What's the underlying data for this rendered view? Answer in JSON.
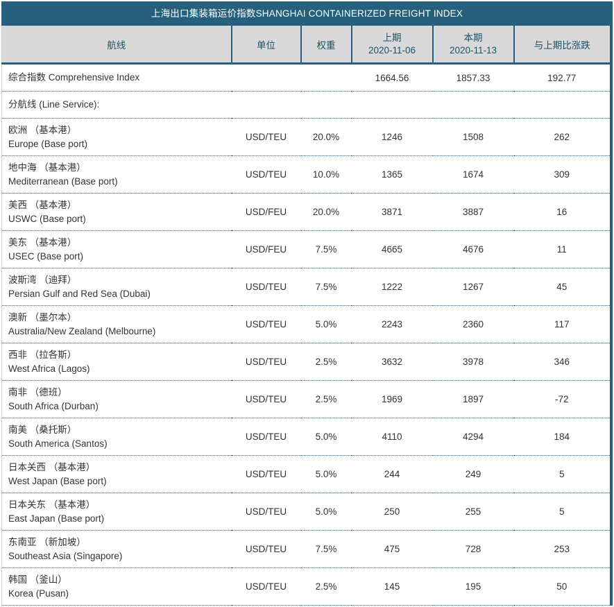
{
  "title": "上海出口集装箱运价指数SHANGHAI CONTAINERIZED FREIGHT INDEX",
  "colors": {
    "accent": "#26607D",
    "header_bg": "#D9D9D9",
    "header_text": "#1D5068",
    "body_text": "#333333",
    "dotted_border": "#2D5970"
  },
  "table": {
    "headers": {
      "route": "航线",
      "unit": "单位",
      "weight": "权重",
      "prev_label": "上期",
      "prev_date": "2020-11-06",
      "curr_label": "本期",
      "curr_date": "2020-11-13",
      "change": "与上期比涨跌"
    },
    "rows": [
      {
        "cn": "综合指数 Comprehensive Index",
        "en": "",
        "unit": "",
        "weight": "",
        "prev": "1664.56",
        "curr": "1857.33",
        "change": "192.77"
      },
      {
        "cn": "分航线 (Line Service):",
        "en": "",
        "unit": "",
        "weight": "",
        "prev": "",
        "curr": "",
        "change": ""
      },
      {
        "cn": "欧洲 （基本港）",
        "en": "Europe (Base port)",
        "unit": "USD/TEU",
        "weight": "20.0%",
        "prev": "1246",
        "curr": "1508",
        "change": "262"
      },
      {
        "cn": "地中海 （基本港）",
        "en": "Mediterranean (Base port)",
        "unit": "USD/TEU",
        "weight": "10.0%",
        "prev": "1365",
        "curr": "1674",
        "change": "309"
      },
      {
        "cn": "美西 （基本港）",
        "en": "USWC (Base port)",
        "unit": "USD/FEU",
        "weight": "20.0%",
        "prev": "3871",
        "curr": "3887",
        "change": "16"
      },
      {
        "cn": "美东 （基本港）",
        "en": "USEC (Base port)",
        "unit": "USD/FEU",
        "weight": "7.5%",
        "prev": "4665",
        "curr": "4676",
        "change": "11"
      },
      {
        "cn": "波斯湾 （迪拜）",
        "en": "Persian Gulf and Red Sea (Dubai)",
        "unit": "USD/TEU",
        "weight": "7.5%",
        "prev": "1222",
        "curr": "1267",
        "change": "45"
      },
      {
        "cn": "澳新 （墨尔本）",
        "en": "Australia/New Zealand (Melbourne)",
        "unit": "USD/TEU",
        "weight": "5.0%",
        "prev": "2243",
        "curr": "2360",
        "change": "117"
      },
      {
        "cn": "西非 （拉各斯）",
        "en": "West Africa (Lagos)",
        "unit": "USD/TEU",
        "weight": "2.5%",
        "prev": "3632",
        "curr": "3978",
        "change": "346"
      },
      {
        "cn": "南非 （德班）",
        "en": "South Africa (Durban)",
        "unit": "USD/TEU",
        "weight": "2.5%",
        "prev": "1969",
        "curr": "1897",
        "change": "-72"
      },
      {
        "cn": "南美 （桑托斯）",
        "en": "South America (Santos)",
        "unit": "USD/TEU",
        "weight": "5.0%",
        "prev": "4110",
        "curr": "4294",
        "change": "184"
      },
      {
        "cn": "日本关西 （基本港）",
        "en": "West Japan (Base port)",
        "unit": "USD/TEU",
        "weight": "5.0%",
        "prev": "244",
        "curr": "249",
        "change": "5"
      },
      {
        "cn": "日本关东 （基本港）",
        "en": "East Japan (Base port)",
        "unit": "USD/TEU",
        "weight": "5.0%",
        "prev": "250",
        "curr": "255",
        "change": "5"
      },
      {
        "cn": "东南亚 （新加坡）",
        "en": "Southeast Asia (Singapore)",
        "unit": "USD/TEU",
        "weight": "7.5%",
        "prev": "475",
        "curr": "728",
        "change": "253"
      },
      {
        "cn": "韩国 （釜山）",
        "en": "Korea (Pusan)",
        "unit": "USD/TEU",
        "weight": "2.5%",
        "prev": "145",
        "curr": "195",
        "change": "50"
      }
    ]
  },
  "chart_data": {
    "type": "table",
    "title": "上海出口集装箱运价指数SHANGHAI CONTAINERIZED FREIGHT INDEX",
    "columns": [
      "航线",
      "单位",
      "权重",
      "上期 2020-11-06",
      "本期 2020-11-13",
      "与上期比涨跌"
    ],
    "rows": [
      [
        "综合指数 Comprehensive Index",
        "",
        "",
        1664.56,
        1857.33,
        192.77
      ],
      [
        "分航线 (Line Service):",
        "",
        "",
        null,
        null,
        null
      ],
      [
        "欧洲 （基本港） Europe (Base port)",
        "USD/TEU",
        "20.0%",
        1246,
        1508,
        262
      ],
      [
        "地中海 （基本港） Mediterranean (Base port)",
        "USD/TEU",
        "10.0%",
        1365,
        1674,
        309
      ],
      [
        "美西 （基本港） USWC (Base port)",
        "USD/FEU",
        "20.0%",
        3871,
        3887,
        16
      ],
      [
        "美东 （基本港） USEC (Base port)",
        "USD/FEU",
        "7.5%",
        4665,
        4676,
        11
      ],
      [
        "波斯湾 （迪拜） Persian Gulf and Red Sea (Dubai)",
        "USD/TEU",
        "7.5%",
        1222,
        1267,
        45
      ],
      [
        "澳新 （墨尔本） Australia/New Zealand (Melbourne)",
        "USD/TEU",
        "5.0%",
        2243,
        2360,
        117
      ],
      [
        "西非 （拉各斯） West Africa (Lagos)",
        "USD/TEU",
        "2.5%",
        3632,
        3978,
        346
      ],
      [
        "南非 （德班） South Africa (Durban)",
        "USD/TEU",
        "2.5%",
        1969,
        1897,
        -72
      ],
      [
        "南美 （桑托斯） South America (Santos)",
        "USD/TEU",
        "5.0%",
        4110,
        4294,
        184
      ],
      [
        "日本关西 （基本港） West Japan (Base port)",
        "USD/TEU",
        "5.0%",
        244,
        249,
        5
      ],
      [
        "日本关东 （基本港） East Japan (Base port)",
        "USD/TEU",
        "5.0%",
        250,
        255,
        5
      ],
      [
        "东南亚 （新加坡） Southeast Asia (Singapore)",
        "USD/TEU",
        "7.5%",
        475,
        728,
        253
      ],
      [
        "韩国 （釜山） Korea (Pusan)",
        "USD/TEU",
        "2.5%",
        145,
        195,
        50
      ]
    ]
  }
}
